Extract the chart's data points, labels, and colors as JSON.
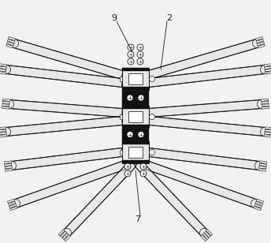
{
  "bg_color": "#f2f2f2",
  "line_color": "#1a1a1a",
  "fill_color": "#e8e8e8",
  "dark_fill": "#111111",
  "white_fill": "#ffffff",
  "mid_fill": "#d0d0d0",
  "label_9": "9",
  "label_2": "2",
  "label_7": "7",
  "fig_width": 3.44,
  "fig_height": 3.08,
  "dpi": 100
}
